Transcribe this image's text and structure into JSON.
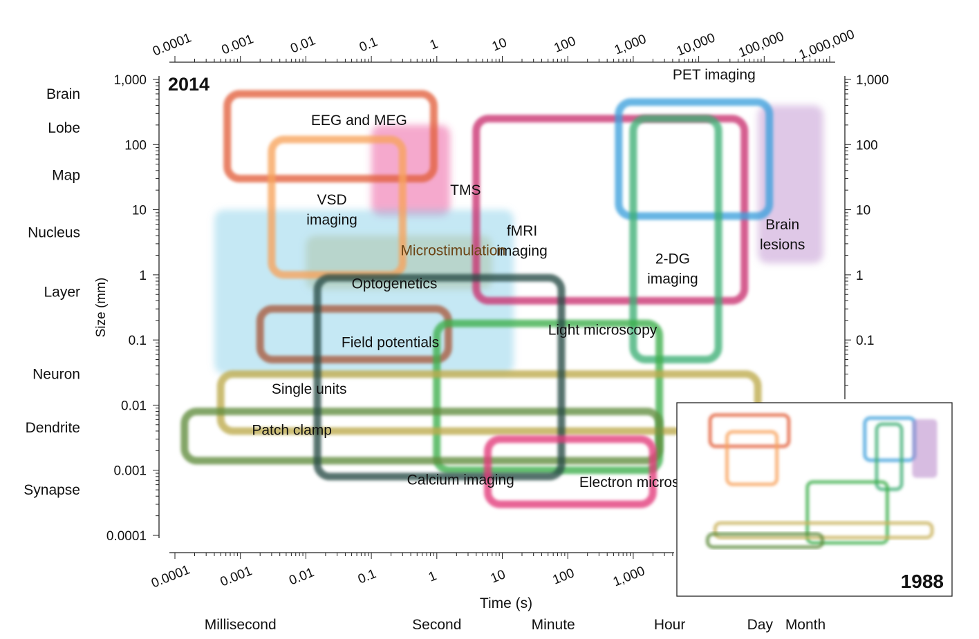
{
  "chart_data": {
    "type": "area",
    "main": {
      "year_label": "2014",
      "xlabel": "Time (s)",
      "ylabel": "Size (mm)",
      "x_scale": "log",
      "y_scale": "log",
      "xlim": [
        5e-05,
        1500000
      ],
      "ylim": [
        8e-05,
        1300
      ],
      "x_ticks": [
        0.0001,
        0.001,
        0.01,
        0.1,
        1,
        10,
        100,
        1000,
        10000,
        100000,
        1000000
      ],
      "x_tick_labels_top": [
        "0.0001",
        "0.001",
        "0.01",
        "0.1",
        "1",
        "10",
        "100",
        "1,000",
        "10,000",
        "100,000",
        "1,000,000"
      ],
      "x_tick_labels_bottom": [
        "0.0001",
        "0.001",
        "0.01",
        "0.1",
        "1",
        "10",
        "100",
        "1,000"
      ],
      "y_ticks": [
        0.0001,
        0.001,
        0.01,
        0.1,
        1,
        10,
        100,
        1000
      ],
      "y_tick_labels_left": [
        "0.0001",
        "0.001",
        "0.01",
        "0.1",
        "1",
        "10",
        "100",
        "1,000"
      ],
      "y_tick_labels_right": [
        "0.1",
        "1",
        "10",
        "100",
        "1,000"
      ],
      "size_scale_labels": [
        {
          "label": "Brain",
          "y": 600
        },
        {
          "label": "Lobe",
          "y": 180
        },
        {
          "label": "Map",
          "y": 34
        },
        {
          "label": "Nucleus",
          "y": 4.5
        },
        {
          "label": "Layer",
          "y": 0.55
        },
        {
          "label": "Neuron",
          "y": 0.03
        },
        {
          "label": "Dendrite",
          "y": 0.0045
        },
        {
          "label": "Synapse",
          "y": 0.0005
        }
      ],
      "time_scale_labels": [
        {
          "label": "Millisecond",
          "x": 0.001
        },
        {
          "label": "Second",
          "x": 1
        },
        {
          "label": "Minute",
          "x": 60
        },
        {
          "label": "Hour",
          "x": 3600
        },
        {
          "label": "Day",
          "x": 86400
        },
        {
          "label": "Month",
          "x": 2600000
        }
      ],
      "series": [
        {
          "name": "EEG and MEG",
          "color": "#e2603c",
          "style": "outline",
          "x": [
            0.00063,
            0.9
          ],
          "y": [
            30,
            600
          ],
          "label_x": 0.012,
          "label_y": 200
        },
        {
          "name": "VSD imaging",
          "color": "#f7a35c",
          "style": "outline",
          "x": [
            0.003,
            0.3
          ],
          "y": [
            1,
            120
          ],
          "label_x": 0.025,
          "label_y": 12
        },
        {
          "name": "TMS",
          "color": "#e84390",
          "style": "fill",
          "x": [
            0.1,
            1.6
          ],
          "y": [
            8,
            200
          ],
          "label_x": 1.6,
          "label_y": 17
        },
        {
          "name": "fMRI imaging",
          "color": "#c9306f",
          "style": "outline",
          "x": [
            4,
            50000
          ],
          "y": [
            0.4,
            250
          ],
          "label_x": 20,
          "label_y": 4
        },
        {
          "name": "PET imaging",
          "color": "#3da0dc",
          "style": "outline",
          "x": [
            600,
            120000
          ],
          "y": [
            8,
            450
          ],
          "label_x": 4000,
          "label_y": 1000
        },
        {
          "name": "Brain lesions",
          "color": "#b785c9",
          "style": "fill",
          "x": [
            80000,
            800000
          ],
          "y": [
            1.5,
            400
          ],
          "label_x": 190000,
          "label_y": 5
        },
        {
          "name": "2-DG imaging",
          "color": "#3dae74",
          "style": "outline",
          "x": [
            1000,
            20000
          ],
          "y": [
            0.05,
            250
          ],
          "label_x": 4000,
          "label_y": 1.5
        },
        {
          "name": "Microstimulation",
          "color": "#c9b15a",
          "style": "fill",
          "x": [
            0.01,
            7
          ],
          "y": [
            0.6,
            4
          ],
          "label_x": 0.28,
          "label_y": 2,
          "label_color": "#6b4415"
        },
        {
          "name": "Optogenetics",
          "color": "#7fcde6",
          "style": "fill",
          "x": [
            0.0004,
            15
          ],
          "y": [
            0.03,
            10
          ],
          "label_x": 0.05,
          "label_y": 0.62
        },
        {
          "name": "Field potentials",
          "color": "#a85a3c",
          "style": "outline",
          "x": [
            0.002,
            1.5
          ],
          "y": [
            0.05,
            0.3
          ],
          "label_x": 0.035,
          "label_y": 0.078
        },
        {
          "name": "Light microscopy",
          "color": "#3cae4a",
          "style": "outline",
          "x": [
            1,
            2500
          ],
          "y": [
            0.001,
            0.18
          ],
          "label_x": 50,
          "label_y": 0.12
        },
        {
          "name": "Single units",
          "color": "#bcab4a",
          "style": "outline",
          "x": [
            0.0005,
            80000
          ],
          "y": [
            0.004,
            0.03
          ],
          "label_x": 0.003,
          "label_y": 0.015
        },
        {
          "name": "Patch clamp",
          "color": "#5f8c3c",
          "style": "outline",
          "x": [
            0.00014,
            2500
          ],
          "y": [
            0.0014,
            0.008
          ],
          "label_x": 0.0015,
          "label_y": 0.0035
        },
        {
          "name": "Calcium imaging",
          "color": "#254b45",
          "style": "outline",
          "x": [
            0.015,
            80
          ],
          "y": [
            0.0008,
            0.9
          ],
          "label_x": 0.35,
          "label_y": 0.0006
        },
        {
          "name": "Electron microscopy",
          "color": "#e13979",
          "style": "outline",
          "x": [
            6,
            2000
          ],
          "y": [
            0.0003,
            0.003
          ],
          "label_x": 150,
          "label_y": 0.00055
        }
      ]
    },
    "inset": {
      "year_label": "1988",
      "boxes": [
        {
          "color": "#e2603c",
          "x": [
            0.00063,
            0.9
          ],
          "y": [
            30,
            600
          ]
        },
        {
          "color": "#f7a35c",
          "x": [
            0.003,
            0.3
          ],
          "y": [
            0.8,
            120
          ]
        },
        {
          "color": "#3da0dc",
          "x": [
            1000,
            100000
          ],
          "y": [
            8,
            450
          ]
        },
        {
          "color": "#b785c9",
          "x": [
            80000,
            800000
          ],
          "y": [
            1.5,
            400
          ],
          "fill": true
        },
        {
          "color": "#3dae74",
          "x": [
            3000,
            30000
          ],
          "y": [
            0.5,
            250
          ]
        },
        {
          "color": "#3cae4a",
          "x": [
            5,
            8000
          ],
          "y": [
            0.003,
            1
          ]
        },
        {
          "color": "#c9b15a",
          "x": [
            0.001,
            500000
          ],
          "y": [
            0.005,
            0.02
          ]
        },
        {
          "color": "#5f8c3c",
          "x": [
            0.0005,
            20
          ],
          "y": [
            0.002,
            0.007
          ]
        }
      ]
    }
  }
}
